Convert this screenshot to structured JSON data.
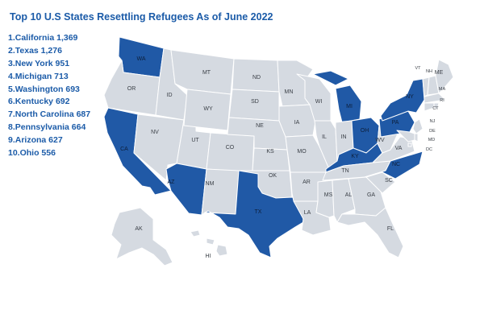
{
  "title": "Top 10 U.S States Resettling Refugees As of June 2022",
  "ranking": [
    {
      "rank": "1.",
      "state": "California",
      "value": "1,369"
    },
    {
      "rank": "2.",
      "state": "Texas",
      "value": "1,276"
    },
    {
      "rank": "3.",
      "state": "New York",
      "value": "951"
    },
    {
      "rank": "4.",
      "state": "Michigan",
      "value": "713"
    },
    {
      "rank": "5.",
      "state": "Washington",
      "value": "693"
    },
    {
      "rank": "6.",
      "state": "Kentucky",
      "value": "692"
    },
    {
      "rank": "7.",
      "state": "North Carolina",
      "value": "687"
    },
    {
      "rank": "8.",
      "state": "Pennsylvania",
      "value": "664"
    },
    {
      "rank": "9.",
      "state": "Arizona",
      "value": "627"
    },
    {
      "rank": "10.",
      "state": "Ohio",
      "value": "556"
    }
  ],
  "map": {
    "highlight_color": "#2059a6",
    "base_color": "#d5dae1",
    "border_color": "#ffffff",
    "highlighted": [
      "CA",
      "TX",
      "NY",
      "MI",
      "WA",
      "KY",
      "NC",
      "PA",
      "AZ",
      "OH"
    ],
    "labels": {
      "WA": "WA",
      "OR": "OR",
      "CA": "CA",
      "ID": "ID",
      "NV": "NV",
      "AZ": "AZ",
      "UT": "UT",
      "MT": "MT",
      "WY": "WY",
      "CO": "CO",
      "NM": "NM",
      "ND": "ND",
      "SD": "SD",
      "NE": "NE",
      "KS": "KS",
      "OK": "OK",
      "TX": "TX",
      "MN": "MN",
      "IA": "IA",
      "MO": "MO",
      "AR": "AR",
      "LA": "LA",
      "WI": "WI",
      "IL": "IL",
      "MI": "MI",
      "IN": "IN",
      "OH": "OH",
      "KY": "KY",
      "TN": "TN",
      "MS": "MS",
      "AL": "AL",
      "GA": "GA",
      "FL": "FL",
      "SC": "SC",
      "NC": "NC",
      "VA": "VA",
      "WV": "WV",
      "PA": "PA",
      "NY": "NY",
      "VT": "VT",
      "NH": "NH",
      "ME": "ME",
      "MA": "MA",
      "RI": "RI",
      "CT": "CT",
      "NJ": "NJ",
      "DE": "DE",
      "MD": "MD",
      "DC": "DC",
      "AK": "AK",
      "HI": "HI"
    }
  }
}
